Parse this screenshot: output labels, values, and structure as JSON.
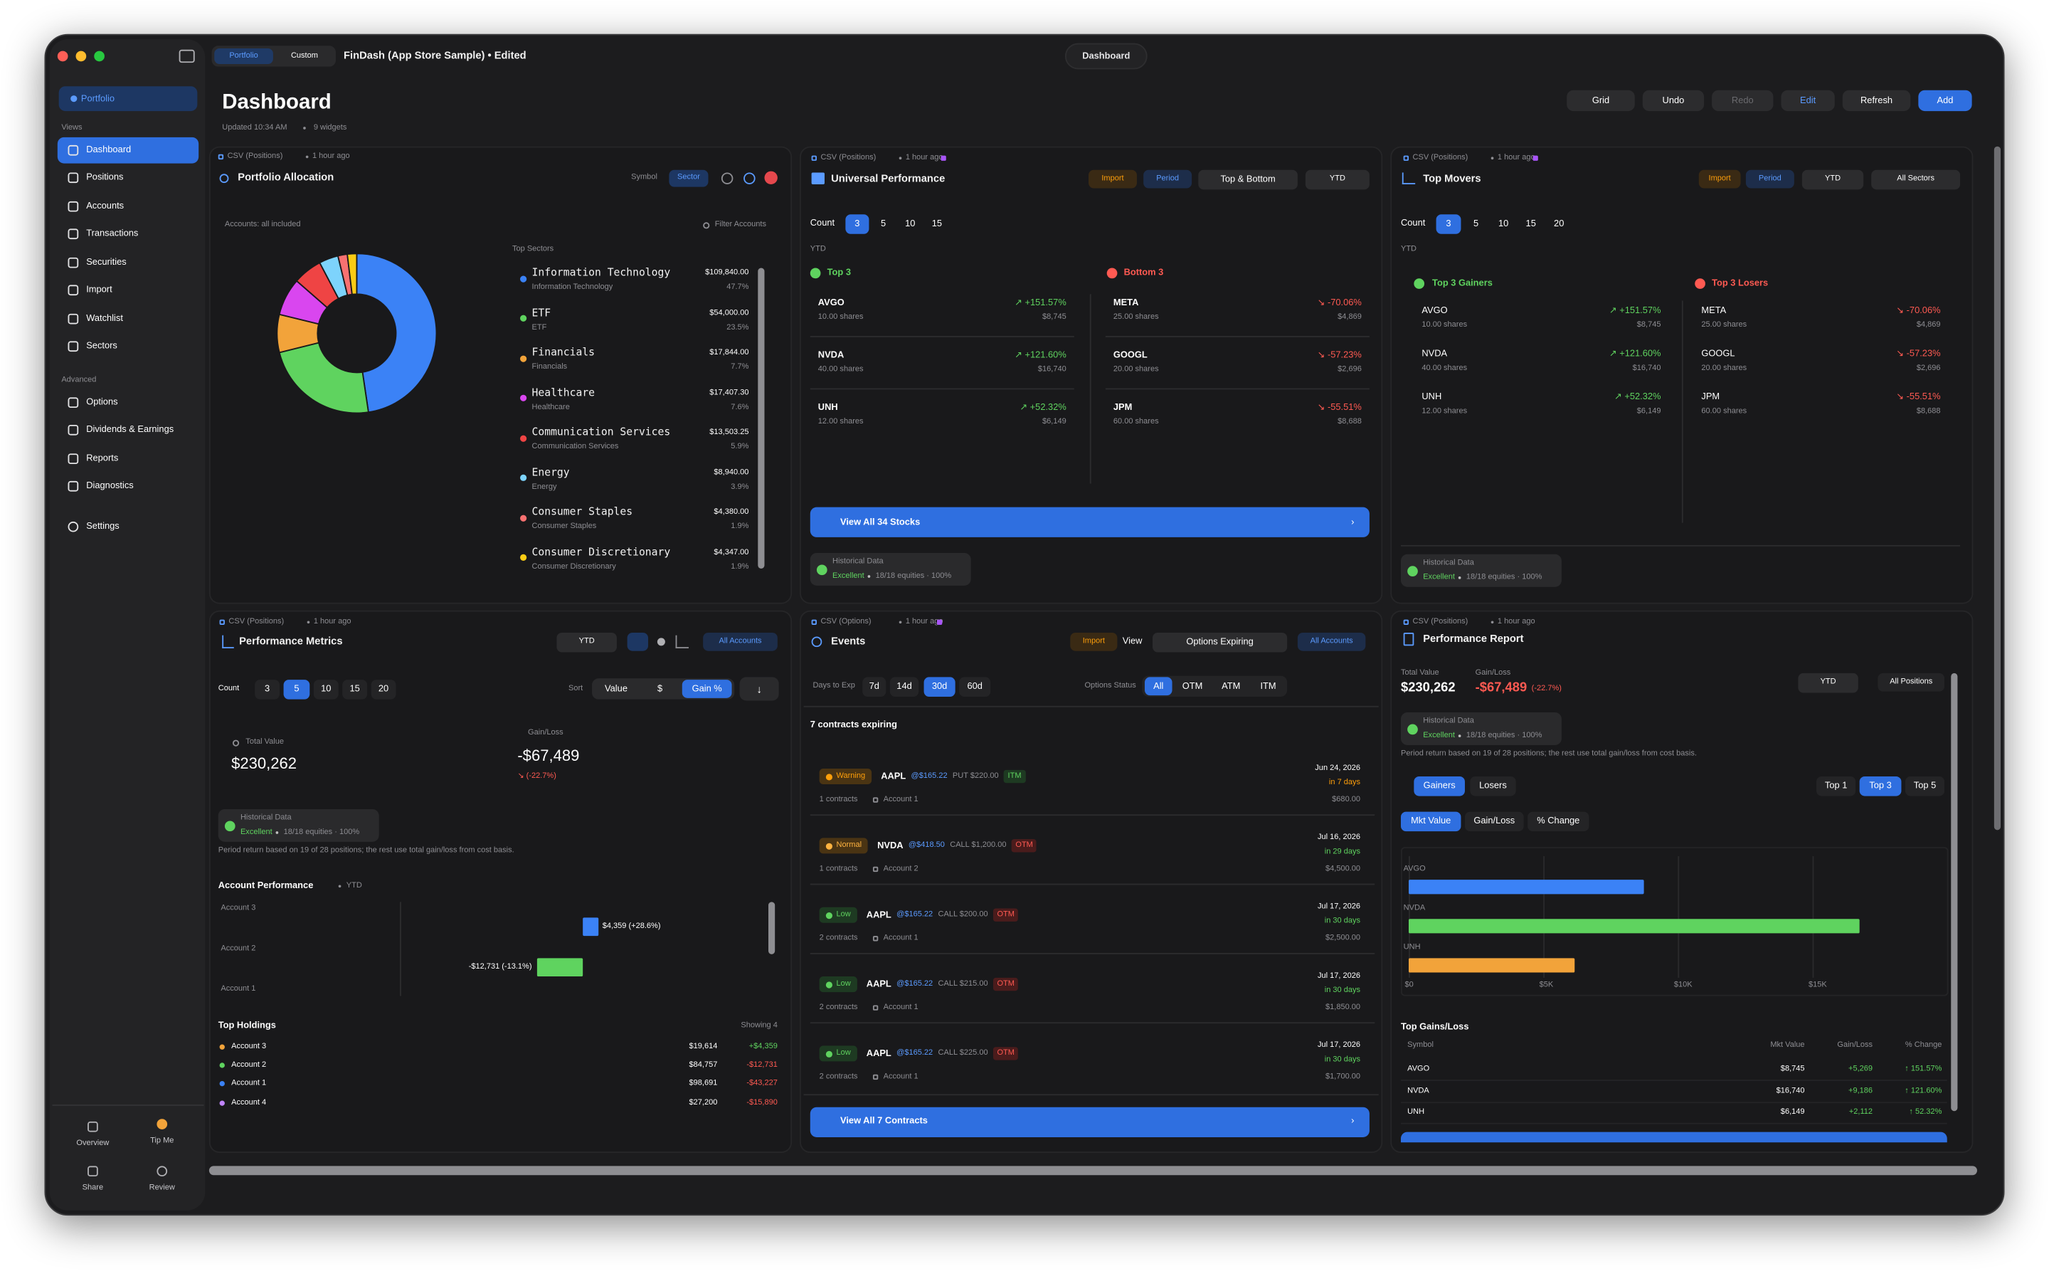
{
  "window": {
    "title": "FinDash (App Store Sample) • Edited",
    "tabs": [
      "Portfolio",
      "Custom"
    ],
    "center_tab": "Dashboard"
  },
  "sidebar": {
    "portfolio": "Portfolio",
    "views_label": "Views",
    "views": [
      "Dashboard",
      "Positions",
      "Accounts",
      "Transactions",
      "Securities",
      "Import",
      "Watchlist",
      "Sectors"
    ],
    "advanced_label": "Advanced",
    "advanced": [
      "Options",
      "Dividends & Earnings",
      "Reports",
      "Diagnostics"
    ],
    "settings": "Settings",
    "footer": [
      "Overview",
      "Tip Me",
      "Share",
      "Review"
    ]
  },
  "header": {
    "title": "Dashboard",
    "updated": "Updated 10:34 AM",
    "widgets": "9 widgets",
    "buttons": [
      "Grid",
      "Undo",
      "Redo",
      "Edit",
      "Refresh",
      "Add"
    ]
  },
  "allocation": {
    "source": "CSV (Positions)",
    "age": "1 hour ago",
    "title": "Portfolio Allocation",
    "symbol": "Symbol",
    "sector": "Sector",
    "accounts": "Accounts: all included",
    "filter": "Filter Accounts",
    "list_title": "Top Sectors",
    "sectors": [
      {
        "name": "Information Technology",
        "sub": "Information Technology",
        "amount": "$109,840.00",
        "value": 47.7,
        "value_label": "47.7%",
        "color": "#3b82f6"
      },
      {
        "name": "ETF",
        "sub": "ETF",
        "amount": "$54,000.00",
        "value": 23.5,
        "value_label": "23.5%",
        "color": "#5fd35f"
      },
      {
        "name": "Financials",
        "sub": "Financials",
        "amount": "$17,844.00",
        "value": 7.7,
        "value_label": "7.7%",
        "color": "#f2a33a"
      },
      {
        "name": "Healthcare",
        "sub": "Healthcare",
        "amount": "$17,407.30",
        "value": 7.6,
        "value_label": "7.6%",
        "color": "#d946ef"
      },
      {
        "name": "Communication Services",
        "sub": "Communication Services",
        "amount": "$13,503.25",
        "value": 5.9,
        "value_label": "5.9%",
        "color": "#ef4444"
      },
      {
        "name": "Energy",
        "sub": "Energy",
        "amount": "$8,940.00",
        "value": 3.9,
        "value_label": "3.9%",
        "color": "#7dd3fc"
      },
      {
        "name": "Consumer Staples",
        "sub": "Consumer Staples",
        "amount": "$4,380.00",
        "value": 1.9,
        "value_label": "1.9%",
        "color": "#f87171"
      },
      {
        "name": "Consumer Discretionary",
        "sub": "Consumer Discretionary",
        "amount": "$4,347.00",
        "value": 1.9,
        "value_label": "1.9%",
        "color": "#facc15"
      }
    ]
  },
  "universal": {
    "source": "CSV (Positions)",
    "age": "1 hour ago",
    "title": "Universal Performance",
    "import": "Import",
    "period": "Period",
    "mode": "Top & Bottom",
    "range": "YTD",
    "count_label": "Count",
    "counts": [
      "3",
      "5",
      "10",
      "15"
    ],
    "ytd": "YTD",
    "top_title": "Top 3",
    "bottom_title": "Bottom 3",
    "top": [
      {
        "symbol": "AVGO",
        "shares": "10.00 shares",
        "change": "↗ +151.57%",
        "value": "$8,745"
      },
      {
        "symbol": "NVDA",
        "shares": "40.00 shares",
        "change": "↗ +121.60%",
        "value": "$16,740"
      },
      {
        "symbol": "UNH",
        "shares": "12.00 shares",
        "change": "↗ +52.32%",
        "value": "$6,149"
      }
    ],
    "bottom": [
      {
        "symbol": "META",
        "shares": "25.00 shares",
        "change": "↘ -70.06%",
        "value": "$4,869"
      },
      {
        "symbol": "GOOGL",
        "shares": "20.00 shares",
        "change": "↘ -57.23%",
        "value": "$2,696"
      },
      {
        "symbol": "JPM",
        "shares": "60.00 shares",
        "change": "↘ -55.51%",
        "value": "$8,688"
      }
    ],
    "view_all": "View All 34 Stocks",
    "hist": {
      "title": "Historical Data",
      "quality": "Excellent",
      "detail": "18/18 equities · 100%"
    }
  },
  "movers": {
    "source": "CSV (Positions)",
    "age": "1 hour ago",
    "title": "Top Movers",
    "import": "Import",
    "period": "Period",
    "range": "YTD",
    "all_sectors": "All Sectors",
    "count_label": "Count",
    "counts": [
      "3",
      "5",
      "10",
      "15",
      "20"
    ],
    "ytd": "YTD",
    "gainers_title": "Top 3 Gainers",
    "losers_title": "Top 3 Losers",
    "gainers": [
      {
        "symbol": "AVGO",
        "shares": "10.00 shares",
        "change": "↗ +151.57%",
        "value": "$8,745"
      },
      {
        "symbol": "NVDA",
        "shares": "40.00 shares",
        "change": "↗ +121.60%",
        "value": "$16,740"
      },
      {
        "symbol": "UNH",
        "shares": "12.00 shares",
        "change": "↗ +52.32%",
        "value": "$6,149"
      }
    ],
    "losers": [
      {
        "symbol": "META",
        "shares": "25.00 shares",
        "change": "↘ -70.06%",
        "value": "$4,869"
      },
      {
        "symbol": "GOOGL",
        "shares": "20.00 shares",
        "change": "↘ -57.23%",
        "value": "$2,696"
      },
      {
        "symbol": "JPM",
        "shares": "60.00 shares",
        "change": "↘ -55.51%",
        "value": "$8,688"
      }
    ],
    "hist": {
      "title": "Historical Data",
      "quality": "Excellent",
      "detail": "18/18 equities · 100%"
    }
  },
  "metrics": {
    "source": "CSV (Positions)",
    "age": "1 hour ago",
    "title": "Performance Metrics",
    "range": "YTD",
    "all_accounts": "All Accounts",
    "count_label": "Count",
    "counts": [
      "3",
      "5",
      "10",
      "15",
      "20"
    ],
    "sort_label": "Sort",
    "sorts": [
      "Value",
      "$",
      "Gain %"
    ],
    "total_label": "Total Value",
    "total": "$230,262",
    "gain_label": "Gain/Loss",
    "gain": "-$67,489",
    "gain_pct": "↘ (-22.7%)",
    "hist": {
      "title": "Historical Data",
      "quality": "Excellent",
      "detail": "18/18 equities · 100%"
    },
    "note": "Period return based on 19 of 28 positions; the rest use total gain/loss from cost basis.",
    "acct_title": "Account Performance",
    "acct_range": "YTD",
    "acct_chart": {
      "categories": [
        "Account 3",
        "Account 2",
        "Account 1"
      ],
      "values": [
        4359,
        -12731,
        null
      ],
      "value_labels": [
        "$4,359 (+28.6%)",
        "-$12,731 (-13.1%)",
        null
      ],
      "colors": [
        "#3b82f6",
        "#5fd35f",
        "#3b82f6"
      ]
    },
    "holdings_title": "Top Holdings",
    "showing": "Showing 4",
    "holdings": [
      {
        "name": "Account 3",
        "color": "#f2a33a",
        "value": "$19,614",
        "change": "+$4,359"
      },
      {
        "name": "Account 2",
        "color": "#5fd35f",
        "value": "$84,757",
        "change": "-$12,731"
      },
      {
        "name": "Account 1",
        "color": "#3b82f6",
        "value": "$98,691",
        "change": "-$43,227"
      },
      {
        "name": "Account 4",
        "color": "#c084fc",
        "value": "$27,200",
        "change": "-$15,890"
      }
    ]
  },
  "events": {
    "source": "CSV (Options)",
    "age": "1 hour ago",
    "title": "Events",
    "import": "Import",
    "view": "View",
    "options_expiring": "Options Expiring",
    "all_accounts": "All Accounts",
    "days_label": "Days to Exp",
    "days": [
      "7d",
      "14d",
      "30d",
      "60d"
    ],
    "status_label": "Options Status",
    "statuses": [
      "All",
      "OTM",
      "ATM",
      "ITM"
    ],
    "summary": "7 contracts expiring",
    "contracts": [
      {
        "level": "Warning",
        "symbol": "AAPL",
        "price": "@$165.22",
        "desc": "PUT $220.00",
        "status": "ITM",
        "count": "1 contracts",
        "account": "Account 1",
        "date": "Jun 24, 2026",
        "due": "in 7 days",
        "amount": "$680.00"
      },
      {
        "level": "Normal",
        "symbol": "NVDA",
        "price": "@$418.50",
        "desc": "CALL $1,200.00",
        "status": "OTM",
        "count": "1 contracts",
        "account": "Account 2",
        "date": "Jul 16, 2026",
        "due": "in 29 days",
        "amount": "$4,500.00"
      },
      {
        "level": "Low",
        "symbol": "AAPL",
        "price": "@$165.22",
        "desc": "CALL $200.00",
        "status": "OTM",
        "count": "2 contracts",
        "account": "Account 1",
        "date": "Jul 17, 2026",
        "due": "in 30 days",
        "amount": "$2,500.00"
      },
      {
        "level": "Low",
        "symbol": "AAPL",
        "price": "@$165.22",
        "desc": "CALL $215.00",
        "status": "OTM",
        "count": "2 contracts",
        "account": "Account 1",
        "date": "Jul 17, 2026",
        "due": "in 30 days",
        "amount": "$1,850.00"
      },
      {
        "level": "Low",
        "symbol": "AAPL",
        "price": "@$165.22",
        "desc": "CALL $225.00",
        "status": "OTM",
        "count": "2 contracts",
        "account": "Account 1",
        "date": "Jul 17, 2026",
        "due": "in 30 days",
        "amount": "$1,700.00"
      }
    ],
    "view_all": "View All 7 Contracts"
  },
  "report": {
    "source": "CSV (Positions)",
    "age": "1 hour ago",
    "title": "Performance Report",
    "total_label": "Total Value",
    "total": "$230,262",
    "gain_label": "Gain/Loss",
    "gain": "-$67,489",
    "gain_pct": "(-22.7%)",
    "range": "YTD",
    "all_positions": "All Positions",
    "hist": {
      "title": "Historical Data",
      "quality": "Excellent",
      "detail": "18/18 equities · 100%"
    },
    "note": "Period return based on 19 of 28 positions; the rest use total gain/loss from cost basis.",
    "tabs": [
      "Gainers",
      "Losers"
    ],
    "tops": [
      "Top 1",
      "Top 3",
      "Top 5"
    ],
    "metrics": [
      "Mkt Value",
      "Gain/Loss",
      "% Change"
    ],
    "chart": {
      "type": "bar",
      "categories": [
        "AVGO",
        "NVDA",
        "UNH"
      ],
      "values": [
        8745,
        16740,
        6149
      ],
      "colors": [
        "#3b82f6",
        "#5fd35f",
        "#f2a33a"
      ],
      "xlim": [
        0,
        20000
      ],
      "xticks": [
        {
          "value": 0,
          "label": "$0"
        },
        {
          "value": 5000,
          "label": "$5K"
        },
        {
          "value": 10000,
          "label": "$10K"
        },
        {
          "value": 15000,
          "label": "$15K"
        }
      ],
      "grid": true
    },
    "table_title": "Top Gains/Loss",
    "columns": [
      "Symbol",
      "Mkt Value",
      "Gain/Loss",
      "% Change"
    ],
    "rows": [
      [
        "AVGO",
        "$8,745",
        "+5,269",
        "↑ 151.57%"
      ],
      [
        "NVDA",
        "$16,740",
        "+9,186",
        "↑ 121.60%"
      ],
      [
        "UNH",
        "$6,149",
        "+2,112",
        "↑ 52.32%"
      ]
    ]
  }
}
